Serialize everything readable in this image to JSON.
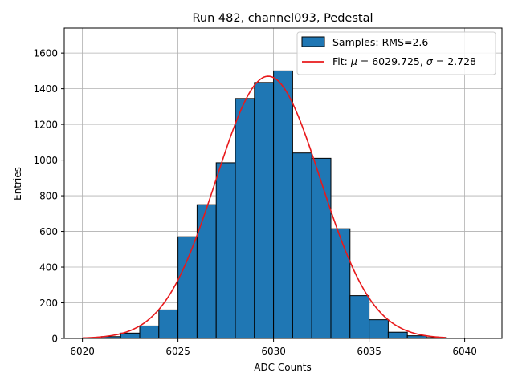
{
  "chart_data": {
    "type": "bar",
    "title": "Run 482, channel093, Pedestal",
    "xlabel": "ADC Counts",
    "ylabel": "Entries",
    "xlim": [
      6019.05,
      6041.95
    ],
    "ylim": [
      0,
      1740
    ],
    "x_ticks": [
      6020,
      6025,
      6030,
      6035,
      6040
    ],
    "y_ticks": [
      0,
      200,
      400,
      600,
      800,
      1000,
      1200,
      1400,
      1600
    ],
    "grid": true,
    "legend_position": "top-right",
    "histogram": {
      "name": "Samples: RMS=2.6",
      "bin_width": 1,
      "bin_starts": [
        6021,
        6022,
        6023,
        6024,
        6025,
        6026,
        6027,
        6028,
        6029,
        6030,
        6031,
        6032,
        6033,
        6034,
        6035,
        6036,
        6037,
        6038
      ],
      "counts": [
        10,
        30,
        70,
        160,
        570,
        750,
        985,
        1345,
        1435,
        1500,
        1040,
        1010,
        615,
        240,
        105,
        35,
        15,
        5
      ],
      "color": "#1f77b4",
      "edge_color": "#000000"
    },
    "fit": {
      "name_prefix": "Fit: ",
      "mu_symbol": "μ",
      "sigma_symbol": "σ",
      "mu": "6029.725",
      "sigma": "2.728",
      "amplitude": 1470,
      "x_range": [
        6020,
        6039
      ],
      "color": "#e8191b"
    }
  }
}
